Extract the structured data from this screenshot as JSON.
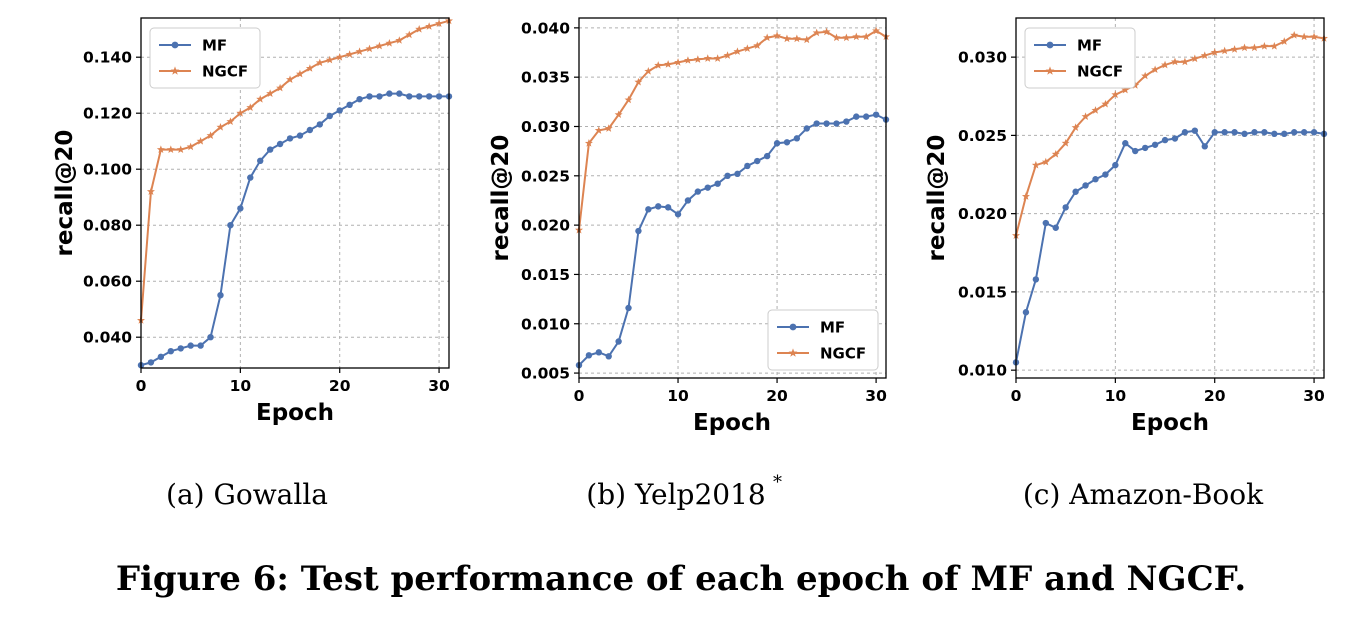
{
  "figure_caption": "Figure 6: Test performance of each epoch of MF and NGCF.",
  "colors": {
    "MF": "#4c72b0",
    "NGCF": "#dd8452"
  },
  "chart_data": [
    {
      "type": "line",
      "caption": "(a)  Gowalla",
      "caption_sup": "",
      "xlabel": "Epoch",
      "ylabel": "recall@20",
      "xlim": [
        0,
        31
      ],
      "ylim": [
        0.029,
        0.154
      ],
      "xticks": [
        0,
        10,
        20,
        30
      ],
      "xtick_labels": [
        "0",
        "10",
        "20",
        "30"
      ],
      "yticks": [
        0.04,
        0.06,
        0.08,
        0.1,
        0.12,
        0.14
      ],
      "ytick_labels": [
        "0.040",
        "0.060",
        "0.080",
        "0.100",
        "0.120",
        "0.140"
      ],
      "grid": true,
      "legend": {
        "position": "top-left",
        "entries": [
          "MF",
          "NGCF"
        ]
      },
      "x": [
        0,
        1,
        2,
        3,
        4,
        5,
        6,
        7,
        8,
        9,
        10,
        11,
        12,
        13,
        14,
        15,
        16,
        17,
        18,
        19,
        20,
        21,
        22,
        23,
        24,
        25,
        26,
        27,
        28,
        29,
        30,
        31
      ],
      "series": [
        {
          "name": "MF",
          "marker": "circle",
          "values": [
            0.03,
            0.031,
            0.033,
            0.035,
            0.036,
            0.037,
            0.037,
            0.04,
            0.055,
            0.08,
            0.086,
            0.097,
            0.103,
            0.107,
            0.109,
            0.111,
            0.112,
            0.114,
            0.116,
            0.119,
            0.121,
            0.123,
            0.125,
            0.126,
            0.126,
            0.127,
            0.127,
            0.126,
            0.126,
            0.126,
            0.126,
            0.126
          ]
        },
        {
          "name": "NGCF",
          "marker": "star",
          "values": [
            0.046,
            0.092,
            0.107,
            0.107,
            0.107,
            0.108,
            0.11,
            0.112,
            0.115,
            0.117,
            0.12,
            0.122,
            0.125,
            0.127,
            0.129,
            0.132,
            0.134,
            0.136,
            0.138,
            0.139,
            0.14,
            0.141,
            0.142,
            0.143,
            0.144,
            0.145,
            0.146,
            0.148,
            0.15,
            0.151,
            0.152,
            0.153
          ]
        }
      ]
    },
    {
      "type": "line",
      "caption": "(b)  Yelp2018",
      "caption_sup": "*",
      "xlabel": "Epoch",
      "ylabel": "recall@20",
      "xlim": [
        0,
        31
      ],
      "ylim": [
        0.0045,
        0.041
      ],
      "xticks": [
        0,
        10,
        20,
        30
      ],
      "xtick_labels": [
        "0",
        "10",
        "20",
        "30"
      ],
      "yticks": [
        0.005,
        0.01,
        0.015,
        0.02,
        0.025,
        0.03,
        0.035,
        0.04
      ],
      "ytick_labels": [
        "0.005",
        "0.010",
        "0.015",
        "0.020",
        "0.025",
        "0.030",
        "0.035",
        "0.040"
      ],
      "grid": true,
      "legend": {
        "position": "bottom-right",
        "entries": [
          "MF",
          "NGCF"
        ]
      },
      "x": [
        0,
        1,
        2,
        3,
        4,
        5,
        6,
        7,
        8,
        9,
        10,
        11,
        12,
        13,
        14,
        15,
        16,
        17,
        18,
        19,
        20,
        21,
        22,
        23,
        24,
        25,
        26,
        27,
        28,
        29,
        30,
        31
      ],
      "series": [
        {
          "name": "MF",
          "marker": "circle",
          "values": [
            0.0058,
            0.0068,
            0.0071,
            0.0067,
            0.0082,
            0.0116,
            0.0194,
            0.0216,
            0.0219,
            0.0218,
            0.0211,
            0.0225,
            0.0234,
            0.0238,
            0.0242,
            0.025,
            0.0252,
            0.026,
            0.0265,
            0.027,
            0.0283,
            0.0284,
            0.0288,
            0.0298,
            0.0303,
            0.0303,
            0.0303,
            0.0305,
            0.031,
            0.031,
            0.0312,
            0.0307
          ]
        },
        {
          "name": "NGCF",
          "marker": "star",
          "values": [
            0.0195,
            0.0283,
            0.0296,
            0.0298,
            0.0312,
            0.0327,
            0.0345,
            0.0356,
            0.0362,
            0.0363,
            0.0365,
            0.0367,
            0.0368,
            0.0369,
            0.0369,
            0.0372,
            0.0376,
            0.0379,
            0.0382,
            0.039,
            0.0392,
            0.0389,
            0.0389,
            0.0388,
            0.0395,
            0.0396,
            0.039,
            0.039,
            0.0391,
            0.0391,
            0.0397,
            0.0391
          ]
        }
      ]
    },
    {
      "type": "line",
      "caption": "(c)  Amazon-Book",
      "caption_sup": "",
      "xlabel": "Epoch",
      "ylabel": "recall@20",
      "xlim": [
        0,
        31
      ],
      "ylim": [
        0.0095,
        0.0325
      ],
      "xticks": [
        0,
        10,
        20,
        30
      ],
      "xtick_labels": [
        "0",
        "10",
        "20",
        "30"
      ],
      "yticks": [
        0.01,
        0.015,
        0.02,
        0.025,
        0.03
      ],
      "ytick_labels": [
        "0.010",
        "0.015",
        "0.020",
        "0.025",
        "0.030"
      ],
      "grid": true,
      "legend": {
        "position": "top-left",
        "entries": [
          "MF",
          "NGCF"
        ]
      },
      "x": [
        0,
        1,
        2,
        3,
        4,
        5,
        6,
        7,
        8,
        9,
        10,
        11,
        12,
        13,
        14,
        15,
        16,
        17,
        18,
        19,
        20,
        21,
        22,
        23,
        24,
        25,
        26,
        27,
        28,
        29,
        30,
        31
      ],
      "series": [
        {
          "name": "MF",
          "marker": "circle",
          "values": [
            0.0105,
            0.0137,
            0.0158,
            0.0194,
            0.0191,
            0.0204,
            0.0214,
            0.0218,
            0.0222,
            0.0225,
            0.0231,
            0.0245,
            0.024,
            0.0242,
            0.0244,
            0.0247,
            0.0248,
            0.0252,
            0.0253,
            0.0243,
            0.0252,
            0.0252,
            0.0252,
            0.0251,
            0.0252,
            0.0252,
            0.0251,
            0.0251,
            0.0252,
            0.0252,
            0.0252,
            0.0251
          ]
        },
        {
          "name": "NGCF",
          "marker": "star",
          "values": [
            0.0186,
            0.0211,
            0.0231,
            0.0233,
            0.0238,
            0.0245,
            0.0255,
            0.0262,
            0.0266,
            0.027,
            0.0276,
            0.0279,
            0.0282,
            0.0288,
            0.0292,
            0.0295,
            0.0297,
            0.0297,
            0.0299,
            0.0301,
            0.0303,
            0.0304,
            0.0305,
            0.0306,
            0.0306,
            0.0307,
            0.0307,
            0.031,
            0.0314,
            0.0313,
            0.0313,
            0.0312
          ]
        }
      ]
    }
  ]
}
